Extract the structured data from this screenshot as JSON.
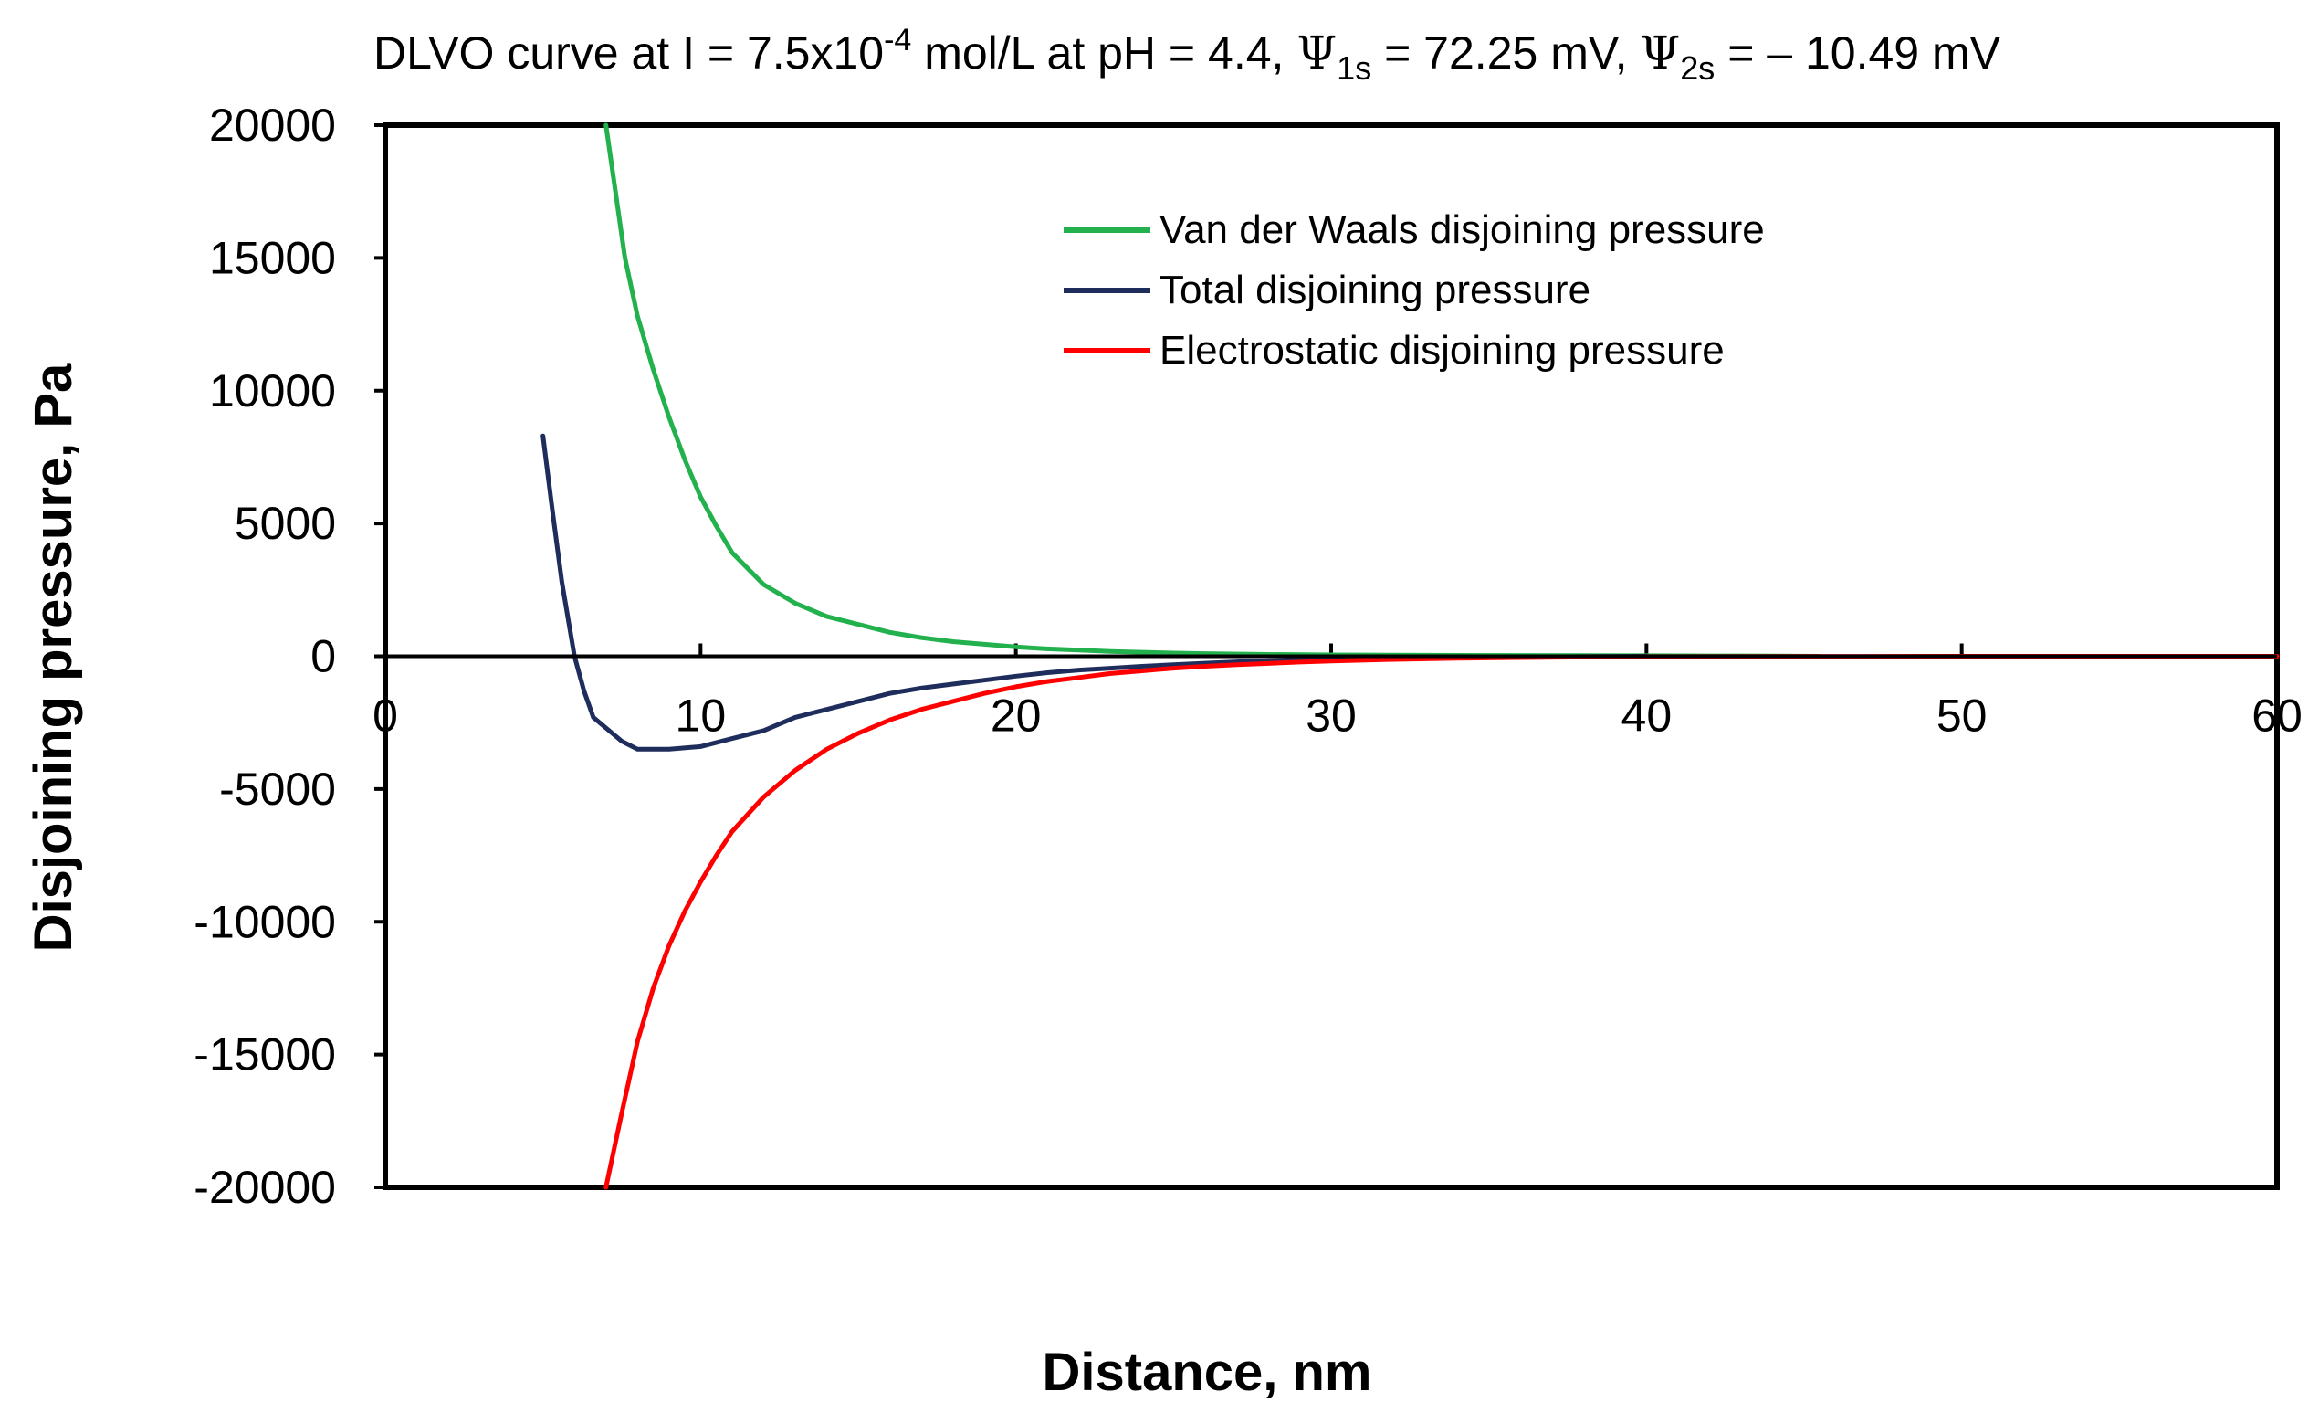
{
  "chart_data": {
    "type": "line",
    "title": {
      "prefix": "DLVO curve at I = 7.5x10",
      "exponent": "-4",
      "middle": " mol/L at pH = 4.4, ",
      "psi1_symbol": "Ψ",
      "psi1_sub": "1s",
      "psi1_value": " = 72.25 mV, ",
      "psi2_symbol": "Ψ",
      "psi2_sub": "2s",
      "psi2_value": " = – 10.49 mV"
    },
    "xlabel": "Distance, nm",
    "ylabel": "Disjoining pressure, Pa",
    "xlim": [
      0,
      60
    ],
    "ylim": [
      -20000,
      20000
    ],
    "xticks": [
      0,
      10,
      20,
      30,
      40,
      50,
      60
    ],
    "xtick_labels": [
      "0",
      "10",
      "20",
      "30",
      "40",
      "50",
      "60"
    ],
    "yticks": [
      20000,
      15000,
      10000,
      5000,
      0,
      -5000,
      -10000,
      -15000,
      -20000
    ],
    "ytick_labels": [
      "20000",
      "15000",
      "10000",
      "5000",
      "0",
      "-5000",
      "-10000",
      "-15000",
      "-20000"
    ],
    "legend_position": "top-right",
    "series": [
      {
        "name": "Van der Waals disjoining pressure",
        "color": "#22b14c",
        "x": [
          7,
          7.3,
          7.6,
          8,
          8.5,
          9,
          9.5,
          10,
          10.5,
          11,
          12,
          13,
          14,
          15,
          16,
          17,
          18,
          19,
          20,
          21,
          22,
          23,
          24,
          25,
          26,
          28,
          30,
          32,
          35,
          38,
          40,
          42,
          44,
          45.5
        ],
        "values": [
          20000,
          17500,
          15000,
          12800,
          10800,
          9000,
          7400,
          6000,
          4900,
          3900,
          2700,
          2000,
          1500,
          1200,
          900,
          700,
          550,
          450,
          350,
          280,
          230,
          180,
          150,
          120,
          100,
          70,
          50,
          40,
          30,
          25,
          20,
          15,
          10,
          0
        ]
      },
      {
        "name": "Total disjoining pressure",
        "color": "#1f2d5c",
        "x": [
          5,
          5.3,
          5.6,
          6,
          6.3,
          6.6,
          7,
          7.5,
          8,
          8.5,
          9,
          10,
          11,
          12,
          13,
          14,
          15,
          16,
          17,
          18,
          19,
          20,
          21,
          22,
          23,
          24,
          25,
          26,
          27,
          28,
          30,
          32,
          34,
          36,
          38,
          40
        ],
        "values": [
          8300,
          5500,
          2800,
          0,
          -1300,
          -2300,
          -2700,
          -3200,
          -3500,
          -3500,
          -3500,
          -3400,
          -3100,
          -2800,
          -2300,
          -2000,
          -1700,
          -1400,
          -1200,
          -1050,
          -900,
          -750,
          -620,
          -520,
          -450,
          -380,
          -320,
          -260,
          -210,
          -170,
          -120,
          -80,
          -50,
          -30,
          -15,
          0
        ]
      },
      {
        "name": "Electrostatic disjoining pressure",
        "color": "#ff0000",
        "x": [
          7,
          7.5,
          8,
          8.5,
          9,
          9.5,
          10,
          10.5,
          11,
          12,
          13,
          14,
          15,
          16,
          17,
          18,
          19,
          20,
          21,
          22,
          23,
          24,
          25,
          26,
          27,
          28,
          29,
          30,
          32,
          34,
          36,
          38,
          40,
          45,
          50,
          55,
          60
        ],
        "values": [
          -20000,
          -17200,
          -14500,
          -12500,
          -10900,
          -9600,
          -8500,
          -7500,
          -6600,
          -5300,
          -4300,
          -3500,
          -2900,
          -2400,
          -2000,
          -1700,
          -1400,
          -1150,
          -950,
          -800,
          -650,
          -550,
          -450,
          -380,
          -320,
          -270,
          -220,
          -180,
          -120,
          -80,
          -50,
          -30,
          -15,
          -5,
          0,
          0,
          0
        ]
      }
    ]
  }
}
